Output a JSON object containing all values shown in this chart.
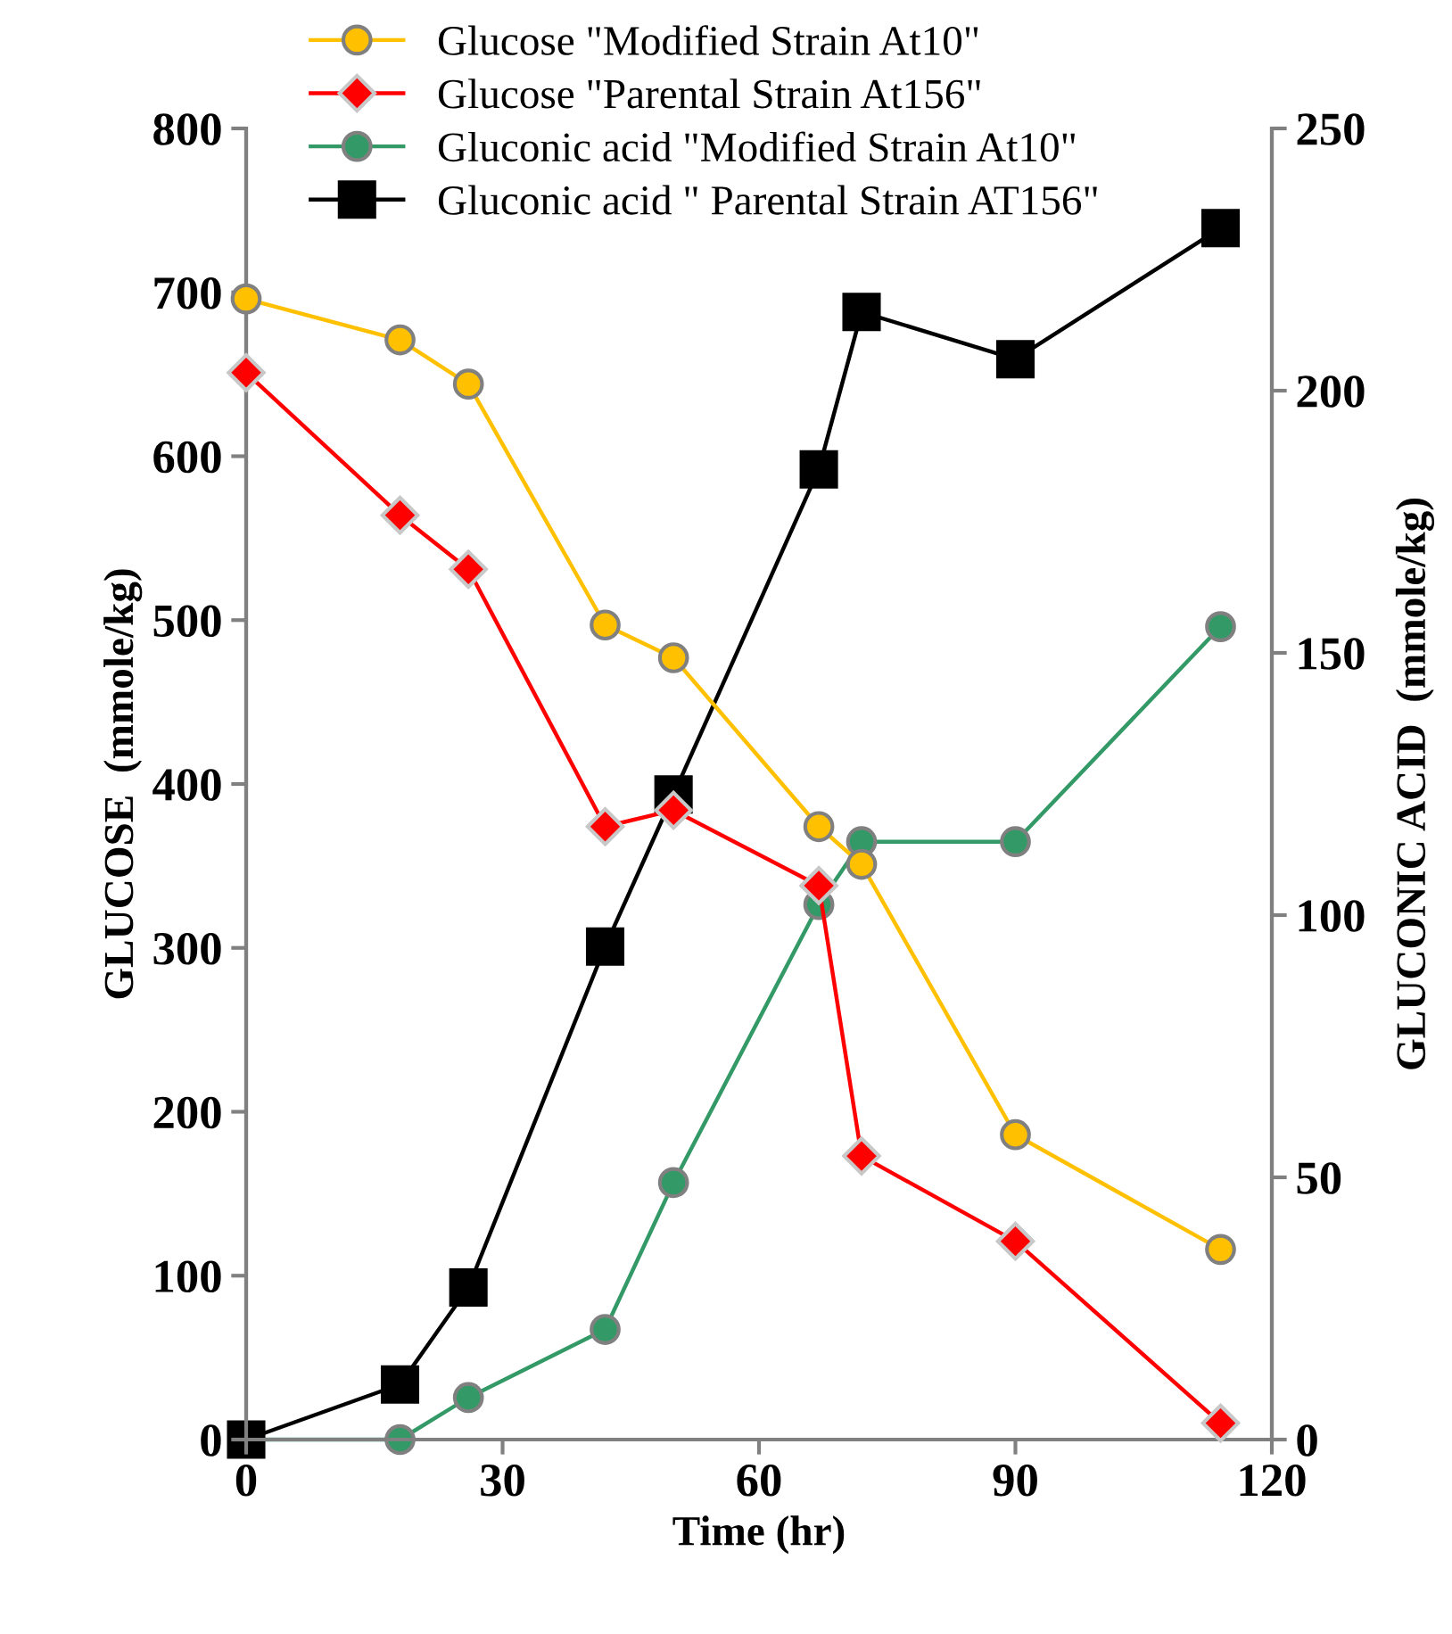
{
  "chart_data": {
    "type": "line",
    "xlabel": "Time (hr)",
    "ylabel": "GLUCOSE  (mmole/kg)",
    "y2label": "GLUCONIC ACID  (mmole/kg)",
    "xlim": [
      0,
      120
    ],
    "xticks": [
      0,
      30,
      60,
      90,
      120
    ],
    "ylim": [
      0,
      800
    ],
    "yticks": [
      0,
      100,
      200,
      300,
      400,
      500,
      600,
      700,
      800
    ],
    "y2lim": [
      0,
      250
    ],
    "y2ticks": [
      0,
      50,
      100,
      150,
      200,
      250
    ],
    "grid": false,
    "legend": "top",
    "series": [
      {
        "name": "Glucose \"Modified Strain At10\"",
        "color": "#ffc000",
        "marker": "circle",
        "x": [
          0,
          18,
          26,
          42,
          50,
          67,
          72,
          90,
          114
        ],
        "values": [
          696,
          671,
          644,
          497,
          477,
          374,
          351,
          186,
          116
        ]
      },
      {
        "name": "Glucose \"Parental Strain At156\"",
        "color": "#ff0000",
        "marker": "diamond",
        "x": [
          0,
          18,
          26,
          42,
          50,
          67,
          72,
          90,
          114
        ],
        "values": [
          651,
          564,
          531,
          374,
          384,
          338,
          173,
          121,
          10
        ]
      },
      {
        "name": "Gluconic acid \"Modified Strain At10\"",
        "color": "#339966",
        "marker": "circle",
        "axis": "y2",
        "x": [
          0,
          18,
          26,
          42,
          50,
          67,
          72,
          90,
          114
        ],
        "values": [
          0,
          0,
          8,
          21,
          49,
          102,
          114,
          114,
          155
        ]
      },
      {
        "name": "Gluconic acid \" Parental Strain AT156\"",
        "color": "#000000",
        "marker": "square",
        "axis": "y2",
        "x": [
          0,
          18,
          26,
          42,
          50,
          67,
          72,
          90,
          114
        ],
        "values": [
          0,
          10.5,
          29,
          94,
          123,
          185,
          215,
          206,
          231
        ]
      }
    ]
  }
}
